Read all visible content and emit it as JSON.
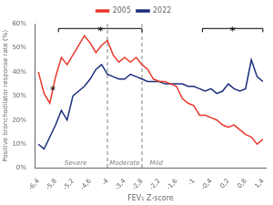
{
  "chart_data": {
    "type": "line",
    "xlabel": "FEV₁ Z-score",
    "ylabel": "Positive bronchodilator response rate (%)",
    "x": [
      -6.4,
      -6.2,
      -6.0,
      -5.8,
      -5.6,
      -5.4,
      -5.2,
      -5.0,
      -4.8,
      -4.6,
      -4.4,
      -4.2,
      -4.0,
      -3.8,
      -3.6,
      -3.4,
      -3.2,
      -3.0,
      -2.8,
      -2.6,
      -2.4,
      -2.2,
      -2.0,
      -1.8,
      -1.6,
      -1.4,
      -1.2,
      -1.0,
      -0.8,
      -0.6,
      -0.4,
      -0.2,
      0.0,
      0.2,
      0.4,
      0.6,
      0.8,
      1.0,
      1.2,
      1.4
    ],
    "series": [
      {
        "name": "2005",
        "color": "#e8392a",
        "values": [
          40,
          31,
          27,
          38,
          46,
          43,
          47,
          51,
          55,
          52,
          48,
          51,
          53,
          47,
          44,
          46,
          44,
          46,
          43,
          41,
          37,
          36,
          36,
          35,
          34,
          29,
          27,
          26,
          22,
          22,
          21,
          20,
          18,
          17,
          18,
          16,
          14,
          13,
          10,
          12
        ]
      },
      {
        "name": "2022",
        "color": "#1a2e7a",
        "values": [
          10,
          8,
          13,
          18,
          24,
          20,
          30,
          32,
          34,
          37,
          41,
          43,
          39,
          38,
          37,
          37,
          39,
          38,
          37,
          36,
          36,
          36,
          35,
          35,
          35,
          35,
          34,
          34,
          33,
          32,
          33,
          31,
          32,
          35,
          33,
          32,
          33,
          45,
          38,
          36
        ]
      }
    ],
    "xlim": [
      -6.5,
      1.5
    ],
    "xticks": [
      {
        "value": -6.4,
        "label": "-6,4"
      },
      {
        "value": -5.8,
        "label": "-5,8"
      },
      {
        "value": -5.2,
        "label": "-5,2"
      },
      {
        "value": -4.6,
        "label": "-4,6"
      },
      -4,
      {
        "value": -3.4,
        "label": "-3,4"
      },
      {
        "value": -2.8,
        "label": "-2,8"
      },
      {
        "value": -2.2,
        "label": "-2,2"
      },
      {
        "value": -1.6,
        "label": "-1,6"
      },
      -1,
      {
        "value": -0.4,
        "label": "-0,4"
      },
      {
        "value": 0.2,
        "label": "0,2"
      },
      {
        "value": 0.8,
        "label": "0,8"
      },
      {
        "value": 1.4,
        "label": "1,4"
      }
    ],
    "ylim": [
      0,
      60
    ],
    "yticks": [
      {
        "value": 0,
        "label": "0%"
      },
      {
        "value": 10,
        "label": "10%"
      },
      {
        "value": 20,
        "label": "20%"
      },
      {
        "value": 30,
        "label": "30%"
      },
      {
        "value": 40,
        "label": "40%"
      },
      {
        "value": 50,
        "label": "50%"
      },
      {
        "value": 60,
        "label": "60%"
      }
    ],
    "grid": false,
    "legend": "top",
    "vlines": [
      -4.0,
      -2.8
    ],
    "annotations": [
      {
        "text": "Severe",
        "x": -5.1,
        "y": 2
      },
      {
        "text": "Moderate",
        "x": -3.4,
        "y": 2
      },
      {
        "text": "Mild",
        "x": -2.3,
        "y": 2
      },
      {
        "text": "*",
        "x": -5.9,
        "y": 32
      }
    ],
    "brackets": [
      {
        "x1": -5.7,
        "x2": -2.8,
        "y": 58,
        "text": "*",
        "text_x": -4.25
      },
      {
        "x1": -0.7,
        "x2": 1.4,
        "y": 58,
        "text": "*",
        "text_x": 0.35
      }
    ]
  }
}
